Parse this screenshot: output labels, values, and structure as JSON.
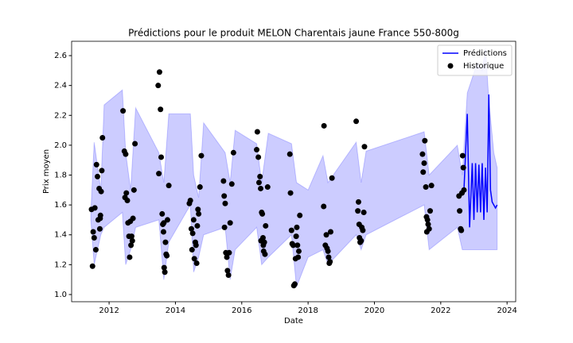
{
  "chart_data": {
    "type": "line",
    "title": "Prédictions pour le produit MELON Charentais jaune France 550-800g",
    "xlabel": "Date",
    "ylabel": "Prix moyen",
    "xlim": [
      2010.87,
      2024.26
    ],
    "ylim": [
      0.952,
      2.696
    ],
    "xticks": [
      2012,
      2014,
      2016,
      2018,
      2020,
      2022,
      2024
    ],
    "yticks": [
      {
        "value": 1,
        "label": "1.0"
      },
      1.2,
      1.4,
      1.6,
      1.8,
      {
        "value": 2,
        "label": "2.0"
      },
      2.2,
      2.4,
      2.6
    ],
    "legend": "upper right",
    "band": {
      "color": "#0000ff",
      "x": [
        2011.45,
        2011.55,
        2011.75,
        2011.85,
        2012.4,
        2012.5,
        2012.65,
        2012.8,
        2013.5,
        2013.65,
        2013.8,
        2014.45,
        2014.55,
        2014.7,
        2014.85,
        2015.5,
        2015.65,
        2015.8,
        2016.45,
        2016.6,
        2016.8,
        2017.5,
        2017.65,
        2018.0,
        2018.45,
        2018.6,
        2019.45,
        2019.6,
        2019.75,
        2021.5,
        2021.65,
        2022.5,
        2022.65,
        2022.8,
        2022.95,
        2023.1,
        2023.25,
        2023.35,
        2023.45,
        2023.6,
        2023.7
      ],
      "upper": [
        1.55,
        2.02,
        1.7,
        2.27,
        2.37,
        1.95,
        1.7,
        2.25,
        1.95,
        1.75,
        2.21,
        2.21,
        1.8,
        1.65,
        2.15,
        1.95,
        1.75,
        2.1,
        2.01,
        1.75,
        2.08,
        2.01,
        1.75,
        1.7,
        1.93,
        1.75,
        2.02,
        1.75,
        1.96,
        2.09,
        1.8,
        2.0,
        1.8,
        2.35,
        2.45,
        2.55,
        2.5,
        2.65,
        2.3,
        1.95,
        1.85
      ],
      "lower": [
        1.5,
        1.2,
        1.4,
        1.45,
        1.55,
        1.2,
        1.3,
        1.45,
        1.5,
        1.1,
        1.35,
        1.6,
        1.15,
        1.25,
        1.4,
        1.45,
        1.1,
        1.3,
        1.45,
        1.2,
        1.25,
        1.4,
        1.05,
        1.25,
        1.3,
        1.2,
        1.4,
        1.3,
        1.4,
        1.6,
        1.3,
        1.45,
        1.3,
        1.3,
        1.3,
        1.3,
        1.3,
        1.3,
        1.3,
        1.3,
        1.3
      ]
    },
    "series": [
      {
        "name": "Prédictions",
        "color": "#0000ff",
        "x": [
          2022.55,
          2022.7,
          2022.8,
          2022.87,
          2022.95,
          2023.0,
          2023.05,
          2023.1,
          2023.15,
          2023.2,
          2023.25,
          2023.3,
          2023.35,
          2023.4,
          2023.45,
          2023.5,
          2023.55,
          2023.65,
          2023.7
        ],
        "values": [
          1.65,
          1.7,
          2.21,
          1.45,
          1.88,
          1.5,
          1.88,
          1.55,
          1.87,
          1.55,
          1.88,
          1.5,
          1.85,
          1.55,
          2.34,
          1.7,
          1.62,
          1.58,
          1.6
        ]
      },
      {
        "name": "Historique",
        "color": "#000000",
        "x": [
          2011.47,
          2011.5,
          2011.52,
          2011.55,
          2011.57,
          2011.6,
          2011.62,
          2011.65,
          2011.67,
          2011.7,
          2011.72,
          2011.74,
          2011.76,
          2011.78,
          2011.8,
          2011.73,
          2012.42,
          2012.46,
          2012.5,
          2012.48,
          2012.52,
          2012.55,
          2012.57,
          2012.6,
          2012.62,
          2012.64,
          2012.66,
          2012.68,
          2012.7,
          2012.72,
          2012.75,
          2012.78,
          2013.48,
          2013.5,
          2013.52,
          2013.55,
          2013.57,
          2013.6,
          2013.62,
          2013.64,
          2013.66,
          2013.68,
          2013.7,
          2013.72,
          2013.74,
          2013.76,
          2013.8,
          2013.65,
          2014.42,
          2014.45,
          2014.48,
          2014.5,
          2014.52,
          2014.55,
          2014.57,
          2014.6,
          2014.62,
          2014.64,
          2014.66,
          2014.68,
          2014.7,
          2014.74,
          2014.78,
          2015.45,
          2015.47,
          2015.5,
          2015.48,
          2015.52,
          2015.55,
          2015.57,
          2015.6,
          2015.62,
          2015.65,
          2015.7,
          2015.75,
          2016.45,
          2016.47,
          2016.5,
          2016.52,
          2016.55,
          2016.57,
          2016.6,
          2016.62,
          2016.58,
          2016.64,
          2016.66,
          2016.68,
          2016.7,
          2016.72,
          2016.78,
          2016.65,
          2017.45,
          2017.47,
          2017.5,
          2017.52,
          2017.55,
          2017.57,
          2017.6,
          2017.62,
          2017.64,
          2017.66,
          2017.68,
          2017.7,
          2017.72,
          2017.75,
          2018.48,
          2018.47,
          2018.52,
          2018.55,
          2018.57,
          2018.6,
          2018.62,
          2018.64,
          2018.66,
          2018.68,
          2018.72,
          2019.45,
          2019.5,
          2019.52,
          2019.54,
          2019.55,
          2019.57,
          2019.6,
          2019.62,
          2019.65,
          2019.68,
          2019.7,
          2021.45,
          2021.5,
          2021.47,
          2021.52,
          2021.55,
          2021.57,
          2021.6,
          2021.62,
          2021.58,
          2021.65,
          2021.68,
          2021.72,
          2022.55,
          2022.57,
          2022.6,
          2022.62,
          2022.64,
          2022.66,
          2022.68,
          2022.7
        ],
        "values": [
          1.57,
          1.19,
          1.42,
          1.38,
          1.58,
          1.3,
          1.87,
          1.79,
          1.5,
          1.71,
          1.44,
          1.53,
          1.69,
          1.83,
          2.05,
          1.51,
          2.23,
          1.96,
          1.94,
          1.65,
          1.68,
          1.63,
          1.48,
          1.39,
          1.25,
          1.49,
          1.33,
          1.39,
          1.36,
          1.51,
          1.7,
          2.01,
          2.4,
          1.81,
          2.49,
          2.24,
          1.92,
          1.54,
          1.47,
          1.42,
          1.18,
          1.15,
          1.35,
          1.27,
          1.26,
          1.5,
          1.73,
          1.48,
          1.61,
          1.63,
          1.44,
          1.3,
          1.41,
          1.5,
          1.24,
          1.35,
          1.33,
          1.21,
          1.46,
          1.57,
          1.54,
          1.72,
          1.93,
          1.76,
          1.66,
          1.61,
          1.45,
          1.28,
          1.25,
          1.16,
          1.13,
          1.28,
          1.48,
          1.74,
          1.95,
          1.97,
          2.09,
          1.92,
          1.75,
          1.79,
          1.71,
          1.55,
          1.54,
          1.36,
          1.38,
          1.29,
          1.35,
          1.27,
          1.46,
          1.72,
          1.33,
          1.94,
          1.68,
          1.43,
          1.34,
          1.33,
          1.06,
          1.07,
          1.24,
          1.39,
          1.45,
          1.33,
          1.25,
          1.29,
          1.53,
          2.13,
          1.59,
          1.33,
          1.4,
          1.31,
          1.29,
          1.25,
          1.21,
          1.22,
          1.42,
          1.78,
          2.16,
          1.56,
          1.62,
          1.47,
          1.38,
          1.35,
          1.36,
          1.45,
          1.43,
          1.55,
          1.99,
          1.94,
          1.88,
          1.82,
          2.03,
          1.72,
          1.52,
          1.5,
          1.47,
          1.42,
          1.44,
          1.56,
          1.73,
          1.66,
          1.56,
          1.44,
          1.43,
          1.68,
          1.93,
          1.85,
          1.7
        ]
      }
    ]
  }
}
